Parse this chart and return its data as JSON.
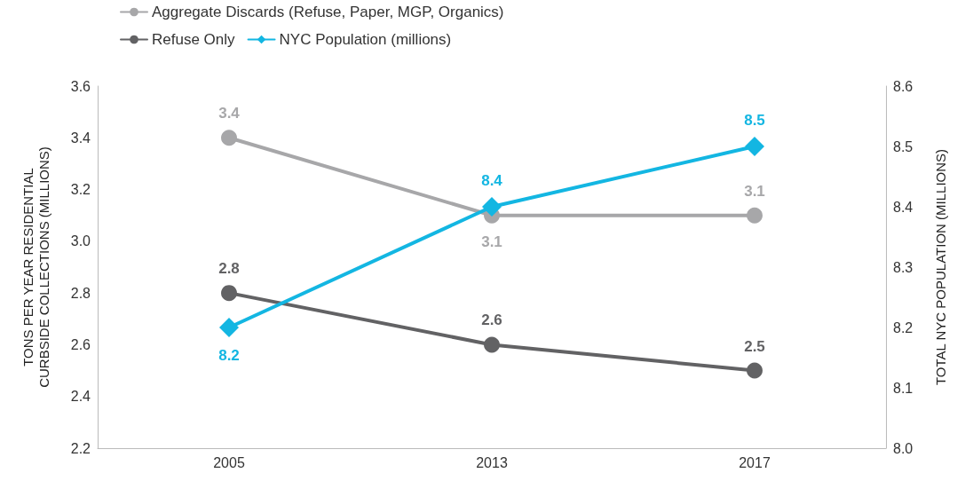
{
  "chart_data": {
    "type": "line",
    "ylabel": "TONS PER YEAR RESIDENTIAL\nCURBSIDE COLLECTIONS (MILLIONS)",
    "y2label": "TOTAL NYC POPULATION (MILLIONS)",
    "categories": [
      "2005",
      "2013",
      "2017"
    ],
    "series": [
      {
        "name": "Aggregate Discards (Refuse, Paper, MGP, Organics)",
        "color": "#a7a7a9",
        "values": [
          3.4,
          3.1,
          3.1
        ],
        "marker": "circle"
      },
      {
        "name": "Refuse Only",
        "color": "#626264",
        "values": [
          2.8,
          2.6,
          2.5
        ],
        "marker": "circle"
      },
      {
        "name": "NYC Population (millions)",
        "color": "#13b6e2",
        "values": [
          8.2,
          8.4,
          8.5
        ],
        "axis": "y2",
        "marker": "diamond"
      }
    ],
    "ylim": [
      2.2,
      3.6
    ],
    "yticks": [
      2.2,
      2.4,
      2.6,
      2.8,
      {
        "value": 3,
        "label": "3.0"
      },
      3.2,
      3.4,
      3.6
    ],
    "y2lim": [
      8,
      8.6
    ],
    "y2ticks": [
      {
        "value": 8,
        "label": "8.0"
      },
      8.1,
      8.2,
      8.3,
      8.4,
      8.5,
      8.6
    ],
    "data_labels": true,
    "legend": "top left",
    "grid": false,
    "line_style": "solid"
  }
}
